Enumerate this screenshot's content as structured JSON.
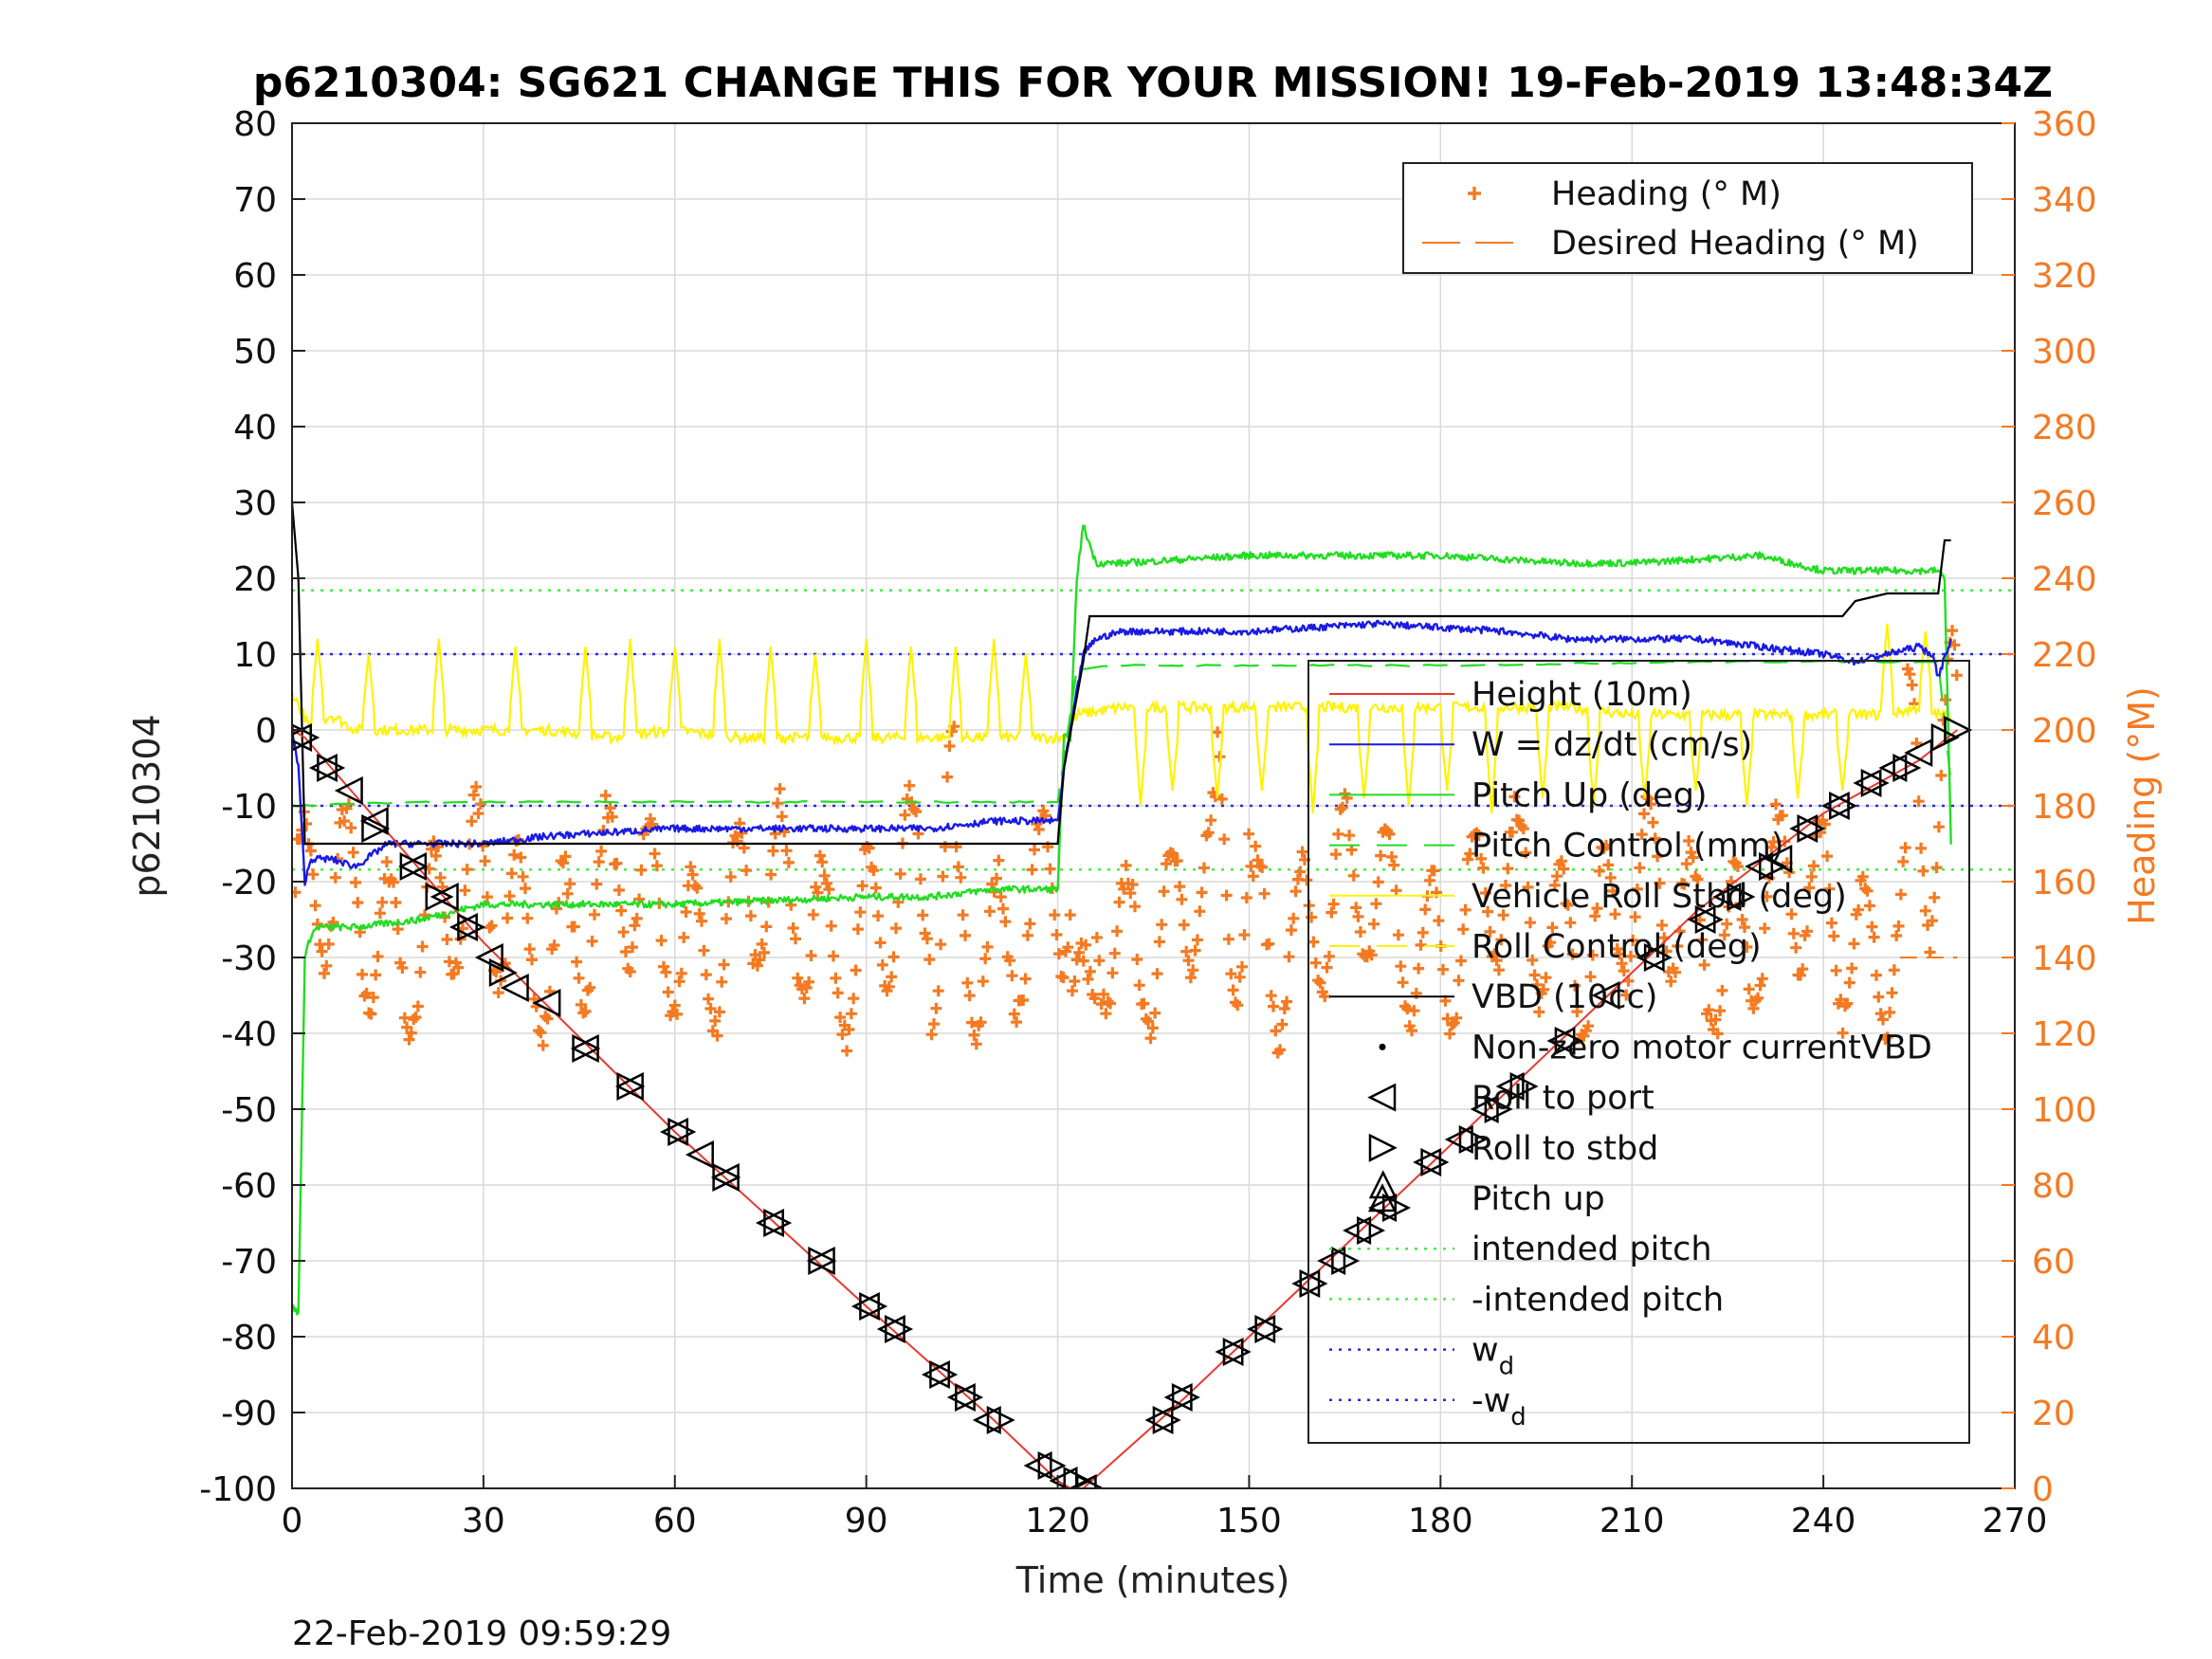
{
  "chart_data": {
    "type": "line",
    "title": "p6210304: SG621 CHANGE THIS FOR YOUR MISSION! 19-Feb-2019 13:48:34Z",
    "xlabel": "Time (minutes)",
    "ylabel": "p6210304",
    "y2label": "Heading (°M)",
    "xlim": [
      0,
      270
    ],
    "ylim": [
      -100,
      80
    ],
    "y2lim": [
      0,
      360
    ],
    "xticks": [
      "0",
      "30",
      "60",
      "90",
      "120",
      "150",
      "180",
      "210",
      "240",
      "270"
    ],
    "yticks": [
      "80",
      "70",
      "60",
      "50",
      "40",
      "30",
      "20",
      "10",
      "0",
      "-10",
      "-20",
      "-30",
      "-40",
      "-50",
      "-60",
      "-70",
      "-80",
      "-90",
      "-100"
    ],
    "y2ticks": [
      "360",
      "340",
      "320",
      "300",
      "280",
      "260",
      "240",
      "220",
      "200",
      "180",
      "160",
      "140",
      "120",
      "100",
      "80",
      "60",
      "40",
      "20",
      "0"
    ],
    "grid": true,
    "timestamp": "22-Feb-2019 09:59:29",
    "colors": {
      "height": "#E8392F",
      "w": "#1A1AE6",
      "pitch_up": "#22DD22",
      "pitch_control": "#22DD22",
      "roll_stbd": "#FFF200",
      "roll_control": "#FFF200",
      "vbd": "#000000",
      "heading": "#F47A22",
      "desired_heading": "#F47A22",
      "intended_pitch": "#44EE44",
      "wd": "#2A2AE6"
    },
    "legend_heading": [
      {
        "key": "heading",
        "label": "Heading (° M)"
      },
      {
        "key": "desired_heading",
        "label": "Desired Heading (° M)"
      }
    ],
    "legend_main": [
      {
        "key": "height",
        "label": "Height (10m)"
      },
      {
        "key": "w",
        "label": "W = dz/dt (cm/s)"
      },
      {
        "key": "pitch_up",
        "label": "Pitch Up (deg)"
      },
      {
        "key": "pitch_control",
        "label": "Pitch Control (mm)"
      },
      {
        "key": "roll_stbd",
        "label": "Vehicle Roll Stbd (deg)"
      },
      {
        "key": "roll_control",
        "label": "Roll Control (deg)"
      },
      {
        "key": "vbd",
        "label": "VBD (10cc)"
      },
      {
        "key": "motor",
        "label": "Non-zero motor currentVBD"
      },
      {
        "key": "roll_port_mk",
        "label": "Roll to port"
      },
      {
        "key": "roll_stbd_mk",
        "label": "Roll to stbd"
      },
      {
        "key": "pitch_up_mk",
        "label": "Pitch up"
      },
      {
        "key": "intended_pitch",
        "label": "intended pitch"
      },
      {
        "key": "neg_intended_pitch",
        "label": "-intended pitch"
      },
      {
        "key": "wd",
        "label": "w",
        "sub": "d"
      },
      {
        "key": "neg_wd",
        "label": "-w",
        "sub": "d"
      }
    ],
    "series": {
      "height": {
        "x": [
          0,
          2,
          30,
          60,
          90,
          110,
          120,
          122,
          124,
          140,
          160,
          180,
          200,
          220,
          240,
          255,
          261
        ],
        "y": [
          0,
          -1,
          -28,
          -53,
          -76,
          -91,
          -99,
          -100,
          -100,
          -88,
          -72,
          -56,
          -40,
          -24,
          -11,
          -4,
          0
        ]
      },
      "vbd": {
        "x": [
          0,
          1,
          2,
          30,
          60,
          90,
          120,
          121,
          124,
          125,
          130,
          160,
          200,
          235,
          243,
          245,
          250,
          258,
          259,
          260
        ],
        "y": [
          30,
          20,
          -15,
          -15,
          -15,
          -15,
          -15,
          -5,
          9,
          15,
          15,
          15,
          15,
          15,
          15,
          17,
          18,
          18,
          25,
          25
        ]
      },
      "w": {
        "x": [
          0,
          1,
          2,
          3,
          6,
          10,
          15,
          20,
          30,
          40,
          60,
          80,
          100,
          110,
          120,
          121,
          124,
          126,
          130,
          150,
          170,
          190,
          200,
          220,
          230,
          240,
          245,
          250,
          255,
          257,
          258,
          260
        ],
        "y": [
          0,
          -5,
          -20,
          -17,
          -17,
          -18,
          -15,
          -15,
          -15,
          -14,
          -13,
          -13,
          -13,
          -12,
          -12,
          -5,
          10,
          12,
          13,
          13,
          14,
          13,
          12,
          12,
          11,
          10,
          9,
          10,
          11,
          10,
          7,
          12
        ]
      },
      "pitch_up": {
        "x": [
          0,
          1,
          2,
          3,
          4,
          10,
          20,
          30,
          60,
          90,
          100,
          110,
          120,
          121,
          122,
          123,
          124,
          126,
          130,
          150,
          180,
          200,
          210,
          230,
          240,
          250,
          255,
          258,
          259,
          260
        ],
        "y": [
          -76,
          -77,
          -30,
          -27,
          -26,
          -26,
          -25,
          -23,
          -23,
          -22,
          -22,
          -21,
          -21,
          -1,
          -1,
          20,
          27,
          22,
          22,
          23,
          23,
          22,
          22,
          23,
          21,
          21,
          21,
          21,
          20,
          -15
        ]
      },
      "pitch_control": {
        "x": [
          0,
          20,
          60,
          120,
          123,
          128,
          180,
          220,
          258,
          260
        ],
        "y": [
          -10,
          -9.5,
          -9.5,
          -9.5,
          8,
          8.5,
          8.5,
          9,
          9,
          -7
        ]
      },
      "roll_stbd": {
        "x": [
          0,
          3,
          6,
          10,
          20,
          30,
          40,
          50,
          60,
          70,
          80,
          90,
          100,
          110,
          120,
          121,
          123,
          130,
          140,
          150,
          160,
          170,
          180,
          190,
          200,
          210,
          220,
          230,
          240,
          250,
          255,
          258,
          260
        ],
        "y": [
          5,
          0,
          2,
          0,
          0,
          0,
          0,
          -1,
          0,
          -1,
          -1,
          -1,
          -1,
          -1,
          -1,
          -1,
          2,
          3,
          3,
          3,
          3,
          3,
          3,
          3,
          3,
          2,
          2,
          2,
          2,
          2,
          3,
          2,
          2
        ]
      },
      "roll_spikes": {
        "x": [
          4,
          12,
          23,
          35,
          46,
          53,
          60,
          67,
          75,
          82,
          90,
          97,
          104,
          110,
          115,
          133,
          138,
          145,
          152,
          160,
          168,
          175,
          181,
          188,
          196,
          204,
          212,
          220,
          228,
          236,
          243,
          250,
          256
        ],
        "y": [
          12,
          10,
          12,
          11,
          11,
          12,
          11,
          12,
          11,
          10,
          12,
          11,
          11,
          12,
          10,
          -10,
          -8,
          -9,
          -8,
          -11,
          -9,
          -10,
          -8,
          -11,
          -9,
          -10,
          -9,
          -8,
          -10,
          -9,
          -8,
          14,
          13
        ]
      },
      "heading_period": 6.8
    },
    "markers": {
      "roll_port": [
        [
          1,
          -1
        ],
        [
          5,
          -5
        ],
        [
          9,
          -8
        ],
        [
          13,
          -12
        ],
        [
          19,
          -18
        ],
        [
          24,
          -22
        ],
        [
          27,
          -26
        ],
        [
          31,
          -30
        ],
        [
          35,
          -34
        ],
        [
          40,
          -36
        ],
        [
          46,
          -42
        ],
        [
          53,
          -47
        ],
        [
          60,
          -53
        ],
        [
          64,
          -56
        ],
        [
          68,
          -59
        ],
        [
          75,
          -65
        ],
        [
          83,
          -70
        ],
        [
          90,
          -76
        ],
        [
          94,
          -79
        ],
        [
          101,
          -85
        ],
        [
          105,
          -88
        ],
        [
          109,
          -91
        ],
        [
          117,
          -97
        ],
        [
          121,
          -99
        ],
        [
          124,
          -100
        ],
        [
          136,
          -91
        ],
        [
          139,
          -88
        ],
        [
          147,
          -82
        ],
        [
          152,
          -79
        ],
        [
          159,
          -73
        ],
        [
          163,
          -70
        ],
        [
          167,
          -66
        ],
        [
          171,
          -63
        ],
        [
          178,
          -57
        ],
        [
          183,
          -54
        ],
        [
          187,
          -50
        ],
        [
          191,
          -47
        ],
        [
          199,
          -41
        ],
        [
          206,
          -35
        ],
        [
          213,
          -30
        ],
        [
          221,
          -25
        ],
        [
          225,
          -22
        ],
        [
          230,
          -18
        ],
        [
          233,
          -17
        ],
        [
          237,
          -13
        ],
        [
          242,
          -10
        ],
        [
          247,
          -7
        ],
        [
          251,
          -5
        ],
        [
          255,
          -3
        ]
      ],
      "roll_stbd": [
        [
          2,
          -1
        ],
        [
          6,
          -5
        ],
        [
          13,
          -13
        ],
        [
          19,
          -18
        ],
        [
          23,
          -22
        ],
        [
          28,
          -26
        ],
        [
          33,
          -32
        ],
        [
          46,
          -42
        ],
        [
          53,
          -47
        ],
        [
          61,
          -53
        ],
        [
          68,
          -59
        ],
        [
          76,
          -65
        ],
        [
          83,
          -70
        ],
        [
          91,
          -76
        ],
        [
          95,
          -79
        ],
        [
          102,
          -85
        ],
        [
          106,
          -88
        ],
        [
          111,
          -91
        ],
        [
          119,
          -97
        ],
        [
          123,
          -99
        ],
        [
          125,
          -100
        ],
        [
          137,
          -91
        ],
        [
          140,
          -88
        ],
        [
          148,
          -82
        ],
        [
          153,
          -79
        ],
        [
          160,
          -73
        ],
        [
          165,
          -70
        ],
        [
          169,
          -66
        ],
        [
          173,
          -63
        ],
        [
          179,
          -57
        ],
        [
          185,
          -54
        ],
        [
          189,
          -50
        ],
        [
          193,
          -47
        ],
        [
          200,
          -41
        ],
        [
          214,
          -30
        ],
        [
          222,
          -25
        ],
        [
          227,
          -22
        ],
        [
          232,
          -18
        ],
        [
          238,
          -13
        ],
        [
          243,
          -10
        ],
        [
          248,
          -7
        ],
        [
          253,
          -5
        ],
        [
          259,
          -1
        ],
        [
          261,
          0
        ]
      ],
      "pitch_up": [
        [
          171,
          -60
        ]
      ]
    },
    "reference_lines": {
      "intended_pitch": 18.4,
      "neg_intended_pitch": -18.4,
      "wd": 10,
      "neg_wd": -10
    }
  }
}
